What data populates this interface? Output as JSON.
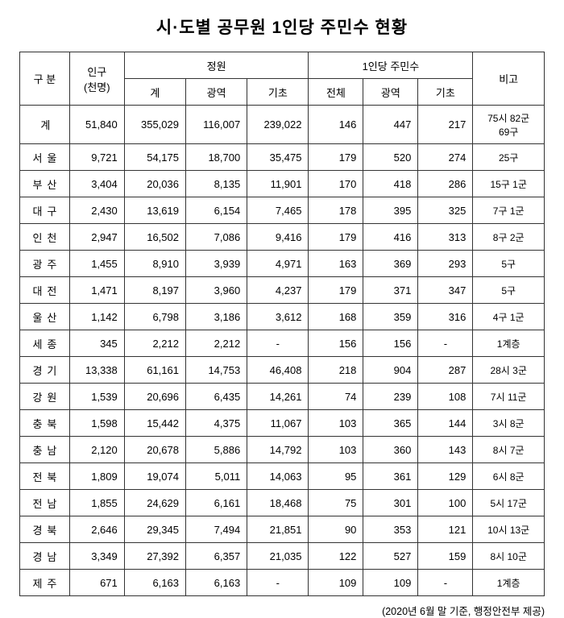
{
  "title": "시·도별 공무원 1인당 주민수 현황",
  "footnote": "(2020년 6월 말 기준, 행정안전부 제공)",
  "headers": {
    "category": "구 분",
    "population": "인구\n(천명)",
    "population_l1": "인구",
    "population_l2": "(천명)",
    "quota": "정원",
    "quota_total": "계",
    "quota_metro": "광역",
    "quota_basic": "기초",
    "per_capita": "1인당 주민수",
    "per_total": "전체",
    "per_metro": "광역",
    "per_basic": "기초",
    "note": "비고"
  },
  "totalRow": {
    "label": "계",
    "pop": "51,840",
    "qt": "355,029",
    "qm": "116,007",
    "qb": "239,022",
    "pt": "146",
    "pm": "447",
    "pb": "217",
    "note_l1": "75시 82군",
    "note_l2": "69구"
  },
  "rows": [
    {
      "label": "서 울",
      "spaced": true,
      "pop": "9,721",
      "qt": "54,175",
      "qm": "18,700",
      "qb": "35,475",
      "pt": "179",
      "pm": "520",
      "pb": "274",
      "note": "25구"
    },
    {
      "label": "부 산",
      "spaced": true,
      "pop": "3,404",
      "qt": "20,036",
      "qm": "8,135",
      "qb": "11,901",
      "pt": "170",
      "pm": "418",
      "pb": "286",
      "note": "15구 1군"
    },
    {
      "label": "대 구",
      "spaced": true,
      "pop": "2,430",
      "qt": "13,619",
      "qm": "6,154",
      "qb": "7,465",
      "pt": "178",
      "pm": "395",
      "pb": "325",
      "note": "7구 1군"
    },
    {
      "label": "인 천",
      "spaced": true,
      "pop": "2,947",
      "qt": "16,502",
      "qm": "7,086",
      "qb": "9,416",
      "pt": "179",
      "pm": "416",
      "pb": "313",
      "note": "8구 2군"
    },
    {
      "label": "광 주",
      "spaced": true,
      "pop": "1,455",
      "qt": "8,910",
      "qm": "3,939",
      "qb": "4,971",
      "pt": "163",
      "pm": "369",
      "pb": "293",
      "note": "5구"
    },
    {
      "label": "대 전",
      "spaced": true,
      "pop": "1,471",
      "qt": "8,197",
      "qm": "3,960",
      "qb": "4,237",
      "pt": "179",
      "pm": "371",
      "pb": "347",
      "note": "5구"
    },
    {
      "label": "울 산",
      "spaced": true,
      "pop": "1,142",
      "qt": "6,798",
      "qm": "3,186",
      "qb": "3,612",
      "pt": "168",
      "pm": "359",
      "pb": "316",
      "note": "4구 1군"
    },
    {
      "label": "세 종",
      "spaced": true,
      "pop": "345",
      "qt": "2,212",
      "qm": "2,212",
      "qb": "-",
      "pt": "156",
      "pm": "156",
      "pb": "-",
      "note": "1계층"
    },
    {
      "label": "경 기",
      "spaced": true,
      "pop": "13,338",
      "qt": "61,161",
      "qm": "14,753",
      "qb": "46,408",
      "pt": "218",
      "pm": "904",
      "pb": "287",
      "note": "28시 3군"
    },
    {
      "label": "강 원",
      "spaced": true,
      "pop": "1,539",
      "qt": "20,696",
      "qm": "6,435",
      "qb": "14,261",
      "pt": "74",
      "pm": "239",
      "pb": "108",
      "note": "7시 11군"
    },
    {
      "label": "충 북",
      "spaced": true,
      "pop": "1,598",
      "qt": "15,442",
      "qm": "4,375",
      "qb": "11,067",
      "pt": "103",
      "pm": "365",
      "pb": "144",
      "note": "3시 8군"
    },
    {
      "label": "충 남",
      "spaced": true,
      "pop": "2,120",
      "qt": "20,678",
      "qm": "5,886",
      "qb": "14,792",
      "pt": "103",
      "pm": "360",
      "pb": "143",
      "note": "8시 7군"
    },
    {
      "label": "전 북",
      "spaced": true,
      "pop": "1,809",
      "qt": "19,074",
      "qm": "5,011",
      "qb": "14,063",
      "pt": "95",
      "pm": "361",
      "pb": "129",
      "note": "6시 8군"
    },
    {
      "label": "전 남",
      "spaced": true,
      "pop": "1,855",
      "qt": "24,629",
      "qm": "6,161",
      "qb": "18,468",
      "pt": "75",
      "pm": "301",
      "pb": "100",
      "note": "5시 17군"
    },
    {
      "label": "경 북",
      "spaced": true,
      "pop": "2,646",
      "qt": "29,345",
      "qm": "7,494",
      "qb": "21,851",
      "pt": "90",
      "pm": "353",
      "pb": "121",
      "note": "10시 13군"
    },
    {
      "label": "경 남",
      "spaced": true,
      "pop": "3,349",
      "qt": "27,392",
      "qm": "6,357",
      "qb": "21,035",
      "pt": "122",
      "pm": "527",
      "pb": "159",
      "note": "8시 10군"
    },
    {
      "label": "제 주",
      "spaced": true,
      "pop": "671",
      "qt": "6,163",
      "qm": "6,163",
      "qb": "-",
      "pt": "109",
      "pm": "109",
      "pb": "-",
      "note": "1계층"
    }
  ]
}
